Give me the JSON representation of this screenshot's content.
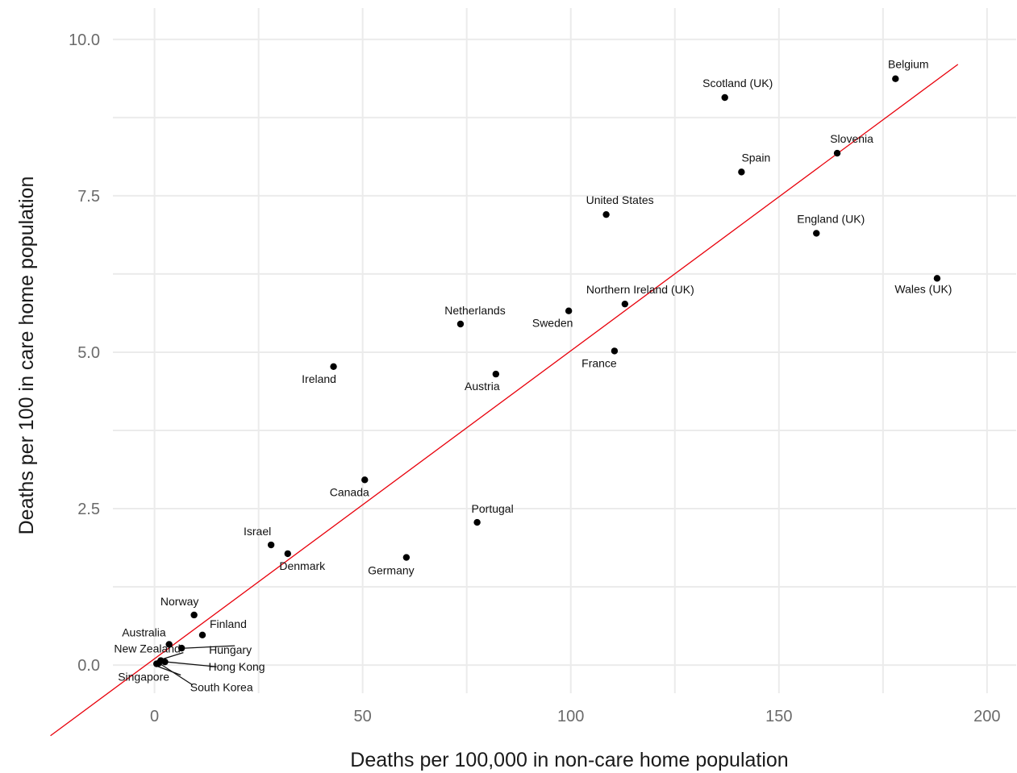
{
  "chart_data": {
    "type": "scatter",
    "title": "",
    "xlabel": "Deaths per 100,000 in non-care home population",
    "ylabel": "Deaths per 100 in care home population",
    "xlim": [
      -10,
      207
    ],
    "ylim": [
      -0.45,
      10.5
    ],
    "xticks": [
      0,
      50,
      100,
      150,
      200
    ],
    "xtick_labels": [
      "0",
      "50",
      "100",
      "150",
      "200"
    ],
    "yticks": [
      0,
      2.5,
      5,
      7.5,
      10
    ],
    "ytick_labels": [
      "0.0",
      "2.5",
      "5.0",
      "7.5",
      "10.0"
    ],
    "grid": true,
    "line_color": "#e8000b",
    "reference_line": {
      "from": [
        -25,
        -1.13
      ],
      "to": [
        193,
        9.6
      ]
    },
    "points": [
      {
        "label": "Belgium",
        "x": 178,
        "y": 9.37
      },
      {
        "label": "Scotland (UK)",
        "x": 137,
        "y": 9.07
      },
      {
        "label": "Slovenia",
        "x": 164,
        "y": 8.18
      },
      {
        "label": "Spain",
        "x": 141,
        "y": 7.88
      },
      {
        "label": "United States",
        "x": 108.5,
        "y": 7.2
      },
      {
        "label": "England (UK)",
        "x": 159,
        "y": 6.9
      },
      {
        "label": "Wales (UK)",
        "x": 188,
        "y": 6.18
      },
      {
        "label": "Northern Ireland (UK)",
        "x": 113,
        "y": 5.77
      },
      {
        "label": "Sweden",
        "x": 99.5,
        "y": 5.66
      },
      {
        "label": "Netherlands",
        "x": 73.5,
        "y": 5.45
      },
      {
        "label": "France",
        "x": 110.5,
        "y": 5.02
      },
      {
        "label": "Ireland",
        "x": 43,
        "y": 4.77
      },
      {
        "label": "Austria",
        "x": 82,
        "y": 4.65
      },
      {
        "label": "Canada",
        "x": 50.5,
        "y": 2.96
      },
      {
        "label": "Portugal",
        "x": 77.5,
        "y": 2.28
      },
      {
        "label": "Israel",
        "x": 28,
        "y": 1.92
      },
      {
        "label": "Denmark",
        "x": 32,
        "y": 1.78
      },
      {
        "label": "Germany",
        "x": 60.5,
        "y": 1.72
      },
      {
        "label": "Norway",
        "x": 9.5,
        "y": 0.8
      },
      {
        "label": "Finland",
        "x": 11.5,
        "y": 0.48
      },
      {
        "label": "Australia",
        "x": 3.5,
        "y": 0.33
      },
      {
        "label": "Hungary",
        "x": 6.5,
        "y": 0.27
      },
      {
        "label": "New Zealand",
        "x": 1.5,
        "y": 0.07
      },
      {
        "label": "Hong Kong",
        "x": 2.5,
        "y": 0.05
      },
      {
        "label": "Singapore",
        "x": 0.5,
        "y": 0.02
      },
      {
        "label": "South Korea",
        "x": 1,
        "y": 0.03
      }
    ]
  }
}
